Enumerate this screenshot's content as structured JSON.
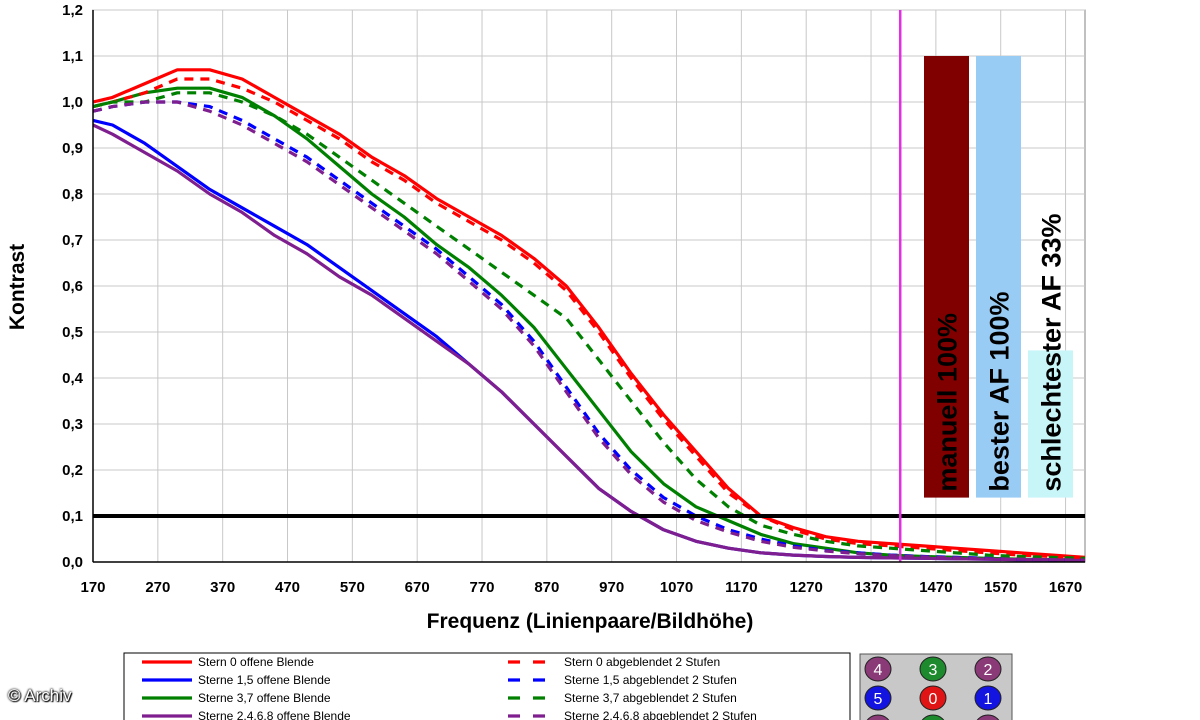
{
  "chart_data": {
    "type": "line",
    "title": "",
    "xlabel": "Frequenz (Linienpaare/Bildhöhe)",
    "ylabel": "Kontrast",
    "xlim": [
      170,
      1700
    ],
    "ylim": [
      0.0,
      1.2
    ],
    "xticks": [
      "170",
      "270",
      "370",
      "470",
      "570",
      "670",
      "770",
      "870",
      "970",
      "1070",
      "1170",
      "1270",
      "1370",
      "1470",
      "1570",
      "1670"
    ],
    "yticks": [
      "0,0",
      "0,1",
      "0,2",
      "0,3",
      "0,4",
      "0,5",
      "0,6",
      "0,7",
      "0,8",
      "0,9",
      "1,0",
      "1,1",
      "1,2"
    ],
    "grid": true,
    "x": [
      170,
      200,
      250,
      300,
      350,
      400,
      450,
      500,
      550,
      600,
      650,
      700,
      750,
      800,
      850,
      900,
      950,
      1000,
      1050,
      1100,
      1150,
      1200,
      1250,
      1300,
      1350,
      1400,
      1450,
      1500,
      1550,
      1600,
      1650,
      1700
    ],
    "series": [
      {
        "name": "Stern 0 offene Blende",
        "color": "#ff0000",
        "dash": false,
        "values": [
          1.0,
          1.01,
          1.04,
          1.07,
          1.07,
          1.05,
          1.01,
          0.97,
          0.93,
          0.88,
          0.84,
          0.79,
          0.75,
          0.71,
          0.66,
          0.6,
          0.51,
          0.41,
          0.32,
          0.24,
          0.16,
          0.1,
          0.075,
          0.055,
          0.045,
          0.04,
          0.035,
          0.03,
          0.025,
          0.02,
          0.015,
          0.01
        ]
      },
      {
        "name": "Sterne 1,5 offene Blende",
        "color": "#0000ff",
        "dash": false,
        "values": [
          0.96,
          0.95,
          0.91,
          0.86,
          0.81,
          0.77,
          0.73,
          0.69,
          0.64,
          0.59,
          0.54,
          0.49,
          0.43,
          0.37,
          0.3,
          0.23,
          0.16,
          0.11,
          0.07,
          0.045,
          0.03,
          0.02,
          0.015,
          0.012,
          0.01,
          0.009,
          0.008,
          0.007,
          0.006,
          0.005,
          0.005,
          0.004
        ]
      },
      {
        "name": "Sterne 3,7 offene Blende",
        "color": "#008000",
        "dash": false,
        "values": [
          0.99,
          1.0,
          1.02,
          1.03,
          1.03,
          1.01,
          0.97,
          0.92,
          0.86,
          0.8,
          0.75,
          0.69,
          0.64,
          0.58,
          0.51,
          0.42,
          0.33,
          0.24,
          0.17,
          0.12,
          0.09,
          0.06,
          0.04,
          0.03,
          0.02,
          0.015,
          0.012,
          0.01,
          0.008,
          0.006,
          0.005,
          0.004
        ]
      },
      {
        "name": "Sterne 2,4,6,8 offene Blende",
        "color": "#7f1f8f",
        "dash": false,
        "values": [
          0.95,
          0.93,
          0.89,
          0.85,
          0.8,
          0.76,
          0.71,
          0.67,
          0.62,
          0.58,
          0.53,
          0.48,
          0.43,
          0.37,
          0.3,
          0.23,
          0.16,
          0.11,
          0.07,
          0.045,
          0.03,
          0.02,
          0.015,
          0.012,
          0.01,
          0.009,
          0.008,
          0.007,
          0.006,
          0.005,
          0.005,
          0.004
        ]
      },
      {
        "name": "Stern 0 abgeblendet 2 Stufen",
        "color": "#ff0000",
        "dash": true,
        "values": [
          0.99,
          1.0,
          1.02,
          1.05,
          1.05,
          1.03,
          1.0,
          0.96,
          0.92,
          0.87,
          0.83,
          0.78,
          0.74,
          0.7,
          0.65,
          0.59,
          0.5,
          0.4,
          0.31,
          0.23,
          0.15,
          0.1,
          0.07,
          0.05,
          0.04,
          0.035,
          0.03,
          0.025,
          0.02,
          0.015,
          0.012,
          0.01
        ]
      },
      {
        "name": "Sterne 1,5 abgeblendet 2 Stufen",
        "color": "#0000ff",
        "dash": true,
        "values": [
          0.98,
          0.99,
          1.0,
          1.0,
          0.99,
          0.96,
          0.92,
          0.88,
          0.83,
          0.78,
          0.73,
          0.68,
          0.62,
          0.56,
          0.48,
          0.38,
          0.28,
          0.2,
          0.14,
          0.1,
          0.07,
          0.05,
          0.035,
          0.025,
          0.02,
          0.015,
          0.012,
          0.01,
          0.008,
          0.006,
          0.005,
          0.004
        ]
      },
      {
        "name": "Sterne 3,7 abgeblendet 2 Stufen",
        "color": "#008000",
        "dash": true,
        "values": [
          0.99,
          1.0,
          1.0,
          1.02,
          1.02,
          1.0,
          0.97,
          0.93,
          0.88,
          0.83,
          0.78,
          0.73,
          0.68,
          0.63,
          0.58,
          0.53,
          0.44,
          0.35,
          0.26,
          0.18,
          0.12,
          0.08,
          0.06,
          0.045,
          0.035,
          0.03,
          0.025,
          0.02,
          0.015,
          0.012,
          0.01,
          0.008
        ]
      },
      {
        "name": "Sterne 2,4,6,8 abgeblendet 2 Stufen",
        "color": "#7f1f8f",
        "dash": true,
        "values": [
          0.98,
          0.99,
          1.0,
          1.0,
          0.98,
          0.95,
          0.91,
          0.87,
          0.82,
          0.77,
          0.72,
          0.67,
          0.61,
          0.55,
          0.47,
          0.37,
          0.27,
          0.19,
          0.13,
          0.09,
          0.065,
          0.045,
          0.032,
          0.024,
          0.018,
          0.014,
          0.011,
          0.009,
          0.007,
          0.006,
          0.005,
          0.004
        ]
      }
    ],
    "threshold": {
      "y": 0.1,
      "color": "#000000"
    },
    "vline": {
      "x": 1415,
      "color": "#e030e0"
    },
    "bars": [
      {
        "label": "manuell 100%",
        "value": 1.1,
        "color": "#800000"
      },
      {
        "label": "bester AF 100%",
        "value": 1.1,
        "color": "#99ccf5"
      },
      {
        "label": "schlechtester AF 33%",
        "value": 0.46,
        "color": "#c8f5f8"
      }
    ],
    "legend": {
      "placement": "bottom",
      "left": [
        {
          "label": "Stern 0 offene Blende",
          "color": "#ff0000",
          "dash": false
        },
        {
          "label": "Sterne 1,5 offene Blende",
          "color": "#0000ff",
          "dash": false
        },
        {
          "label": "Sterne 3,7 offene Blende",
          "color": "#008000",
          "dash": false
        },
        {
          "label": "Sterne 2,4,6,8 offene Blende",
          "color": "#7f1f8f",
          "dash": false
        }
      ],
      "right": [
        {
          "label": "Stern 0 abgeblendet 2 Stufen",
          "color": "#ff0000",
          "dash": true
        },
        {
          "label": "Sterne 1,5 abgeblendet 2 Stufen",
          "color": "#0000ff",
          "dash": true
        },
        {
          "label": "Sterne 3,7 abgeblendet 2 Stufen",
          "color": "#008000",
          "dash": true
        },
        {
          "label": "Sterne 2,4,6,8 abgeblendet 2 Stufen",
          "color": "#7f1f8f",
          "dash": true
        }
      ]
    },
    "star_badges": [
      {
        "label": "4",
        "color": "#8b3a78"
      },
      {
        "label": "3",
        "color": "#1e8a2e"
      },
      {
        "label": "2",
        "color": "#8b3a78"
      },
      {
        "label": "5",
        "color": "#1414e0"
      },
      {
        "label": "0",
        "color": "#e01414"
      },
      {
        "label": "1",
        "color": "#1414e0"
      },
      {
        "label": "",
        "color": "#8b3a78"
      },
      {
        "label": "",
        "color": "#1e8a2e"
      },
      {
        "label": "",
        "color": "#8b3a78"
      }
    ]
  },
  "copyright": "© Archiv"
}
